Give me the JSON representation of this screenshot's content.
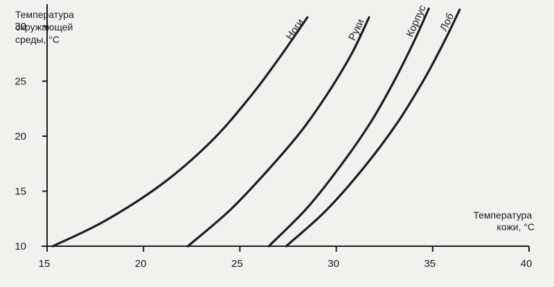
{
  "chart_data": {
    "type": "line",
    "ylabel_lines": [
      "Температура",
      "окружающей",
      "среды, °C"
    ],
    "xlabel_lines": [
      "Температура",
      "кожи, °C"
    ],
    "xlim": [
      15,
      40
    ],
    "ylim": [
      10,
      32
    ],
    "xticks": [
      15,
      20,
      25,
      30,
      35,
      40
    ],
    "yticks": [
      10,
      15,
      20,
      25,
      30
    ],
    "grid": false,
    "series": [
      {
        "name": "Ноги",
        "x": [
          15.3,
          18.0,
          21.0,
          23.5,
          25.5,
          27.0,
          28.5
        ],
        "y": [
          10.0,
          12.3,
          15.7,
          19.5,
          23.5,
          27.0,
          30.8
        ]
      },
      {
        "name": "Руки",
        "x": [
          22.3,
          24.5,
          26.5,
          28.2,
          29.6,
          30.8,
          31.7
        ],
        "y": [
          10.0,
          13.3,
          17.0,
          20.5,
          24.0,
          27.5,
          30.8
        ]
      },
      {
        "name": "Корпус",
        "x": [
          26.5,
          28.5,
          30.3,
          31.8,
          33.0,
          34.0,
          34.8
        ],
        "y": [
          10.0,
          13.5,
          17.5,
          21.3,
          25.0,
          28.5,
          31.6
        ]
      },
      {
        "name": "Лоб",
        "x": [
          27.4,
          29.5,
          31.5,
          33.2,
          34.6,
          35.6,
          36.4
        ],
        "y": [
          10.0,
          13.3,
          17.3,
          21.3,
          25.3,
          28.6,
          31.5
        ]
      }
    ]
  }
}
